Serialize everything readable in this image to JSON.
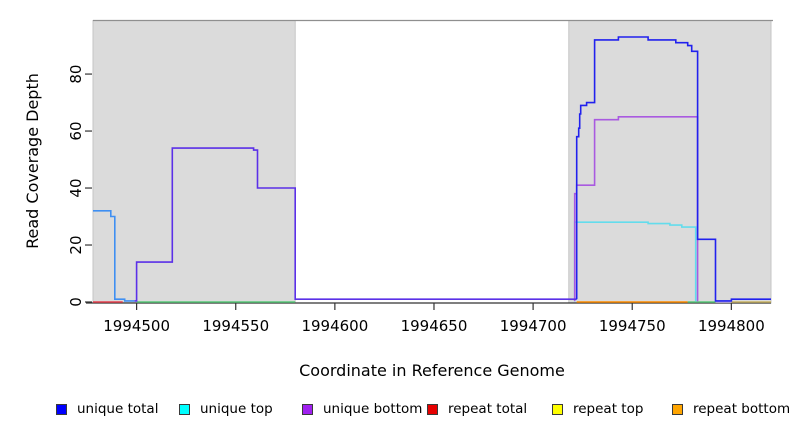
{
  "figure": {
    "background": "#ffffff",
    "shaded_region_color": "#dbdbdb",
    "shaded_region_border": "#c6c6c6",
    "top_border_color": "#8f8f8f",
    "axis_color": "#333333",
    "tick_label_color": "#000000"
  },
  "chart_data": {
    "type": "line",
    "title": "",
    "xlabel": "Coordinate in Reference Genome",
    "ylabel": "Read Coverage Depth",
    "xlim": [
      1994478,
      1994820
    ],
    "ylim": [
      0,
      98.8
    ],
    "x_ticks": [
      1994500,
      1994550,
      1994600,
      1994650,
      1994700,
      1994750,
      1994800
    ],
    "y_ticks": [
      0,
      20,
      40,
      60,
      80
    ],
    "grid": false,
    "legend_position": "bottom",
    "shaded_regions": [
      [
        1994478,
        1994580
      ],
      [
        1994718,
        1994820
      ]
    ],
    "legend": [
      {
        "label": "unique total",
        "color": "#0000ff"
      },
      {
        "label": "unique top",
        "color": "#00ffff"
      },
      {
        "label": "unique bottom",
        "color": "#a020f0"
      },
      {
        "label": "repeat total",
        "color": "#e60000"
      },
      {
        "label": "repeat top",
        "color": "#ffff00"
      },
      {
        "label": "repeat bottom",
        "color": "#ffa500"
      }
    ],
    "series": [
      {
        "name": "repeat-total-baseline-left",
        "color": "#e8414e",
        "points": [
          [
            1994478,
            0
          ],
          [
            1994493,
            0
          ]
        ]
      },
      {
        "name": "baseline-green-left",
        "color": "#5bc97a",
        "points": [
          [
            1994500,
            0
          ],
          [
            1994580,
            0
          ]
        ]
      },
      {
        "name": "repeat-bottom-baseline-right",
        "color": "#ff8c00",
        "points": [
          [
            1994722,
            0
          ],
          [
            1994778,
            0
          ]
        ]
      },
      {
        "name": "baseline-green-right",
        "color": "#5bc97a",
        "points": [
          [
            1994778,
            0
          ],
          [
            1994792,
            0
          ]
        ]
      },
      {
        "name": "baseline-lavender-right",
        "color": "#c7b6ee",
        "points": [
          [
            1994792,
            0
          ],
          [
            1994800,
            0
          ]
        ]
      },
      {
        "name": "baseline-tan-far-right",
        "color": "#c9b465",
        "points": [
          [
            1994800,
            0
          ],
          [
            1994820,
            0
          ]
        ]
      },
      {
        "name": "unique-top-right-block",
        "color": "#63dcec",
        "points": [
          [
            1994721,
            0.2
          ],
          [
            1994721,
            28
          ],
          [
            1994758,
            28
          ],
          [
            1994758,
            27.5
          ],
          [
            1994769,
            27.5
          ],
          [
            1994769,
            27
          ],
          [
            1994775,
            27
          ],
          [
            1994775,
            26.3
          ],
          [
            1994782,
            26.3
          ],
          [
            1994782,
            0.2
          ]
        ]
      },
      {
        "name": "unique-bottom-right-block",
        "color": "#a95ae0",
        "points": [
          [
            1994721,
            0.3
          ],
          [
            1994721,
            38
          ],
          [
            1994722,
            38
          ],
          [
            1994722,
            41
          ],
          [
            1994731,
            41
          ],
          [
            1994731,
            64
          ],
          [
            1994743,
            64
          ],
          [
            1994743,
            65
          ],
          [
            1994783,
            65
          ],
          [
            1994783,
            0.2
          ]
        ]
      },
      {
        "name": "unique-total-left-top-strand",
        "color": "#3f8ff2",
        "points": [
          [
            1994478,
            32
          ],
          [
            1994487,
            32
          ],
          [
            1994487,
            30
          ],
          [
            1994489,
            30
          ],
          [
            1994489,
            1
          ],
          [
            1994494,
            1
          ],
          [
            1994494,
            0.4
          ],
          [
            1994499,
            0.4
          ]
        ]
      },
      {
        "name": "unique-total-left-steps-and-gap",
        "color": "#5b30e8",
        "points": [
          [
            1994499,
            0.4
          ],
          [
            1994500,
            0.4
          ],
          [
            1994500,
            14
          ],
          [
            1994518,
            14
          ],
          [
            1994518,
            54
          ],
          [
            1994559,
            54
          ],
          [
            1994559,
            53.3
          ],
          [
            1994561,
            53.3
          ],
          [
            1994561,
            40
          ],
          [
            1994580,
            40
          ],
          [
            1994580,
            1
          ],
          [
            1994722,
            1
          ]
        ]
      },
      {
        "name": "unique-total-right-block",
        "color": "#2121ee",
        "points": [
          [
            1994722,
            1
          ],
          [
            1994722,
            58
          ],
          [
            1994723,
            58
          ],
          [
            1994723,
            61
          ],
          [
            1994723.5,
            61
          ],
          [
            1994723.5,
            66
          ],
          [
            1994724,
            66
          ],
          [
            1994724,
            69
          ],
          [
            1994727,
            69
          ],
          [
            1994727,
            70
          ],
          [
            1994731,
            70
          ],
          [
            1994731,
            92
          ],
          [
            1994743,
            92
          ],
          [
            1994743,
            93
          ],
          [
            1994758,
            93
          ],
          [
            1994758,
            92
          ],
          [
            1994772,
            92
          ],
          [
            1994772,
            91
          ],
          [
            1994778,
            91
          ],
          [
            1994778,
            90
          ],
          [
            1994780,
            90
          ],
          [
            1994780,
            88
          ],
          [
            1994783,
            88
          ],
          [
            1994783,
            22
          ],
          [
            1994792,
            22
          ],
          [
            1994792,
            0.4
          ],
          [
            1994800,
            0.4
          ],
          [
            1994800,
            1
          ],
          [
            1994820,
            1
          ]
        ]
      }
    ]
  }
}
